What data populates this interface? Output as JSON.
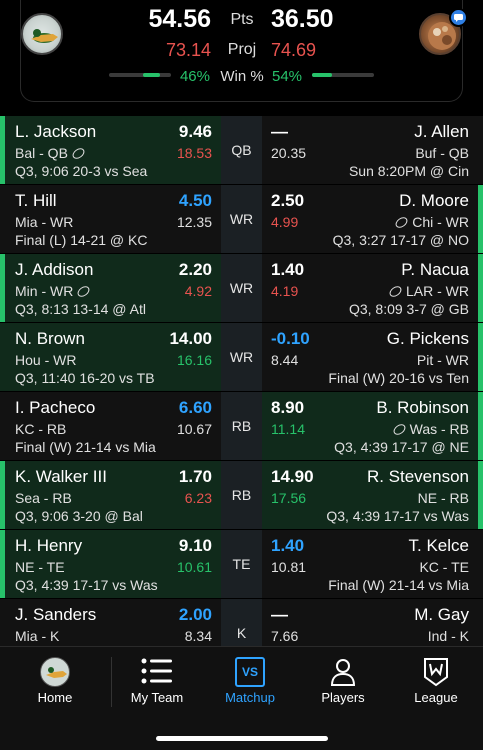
{
  "header": {
    "left_score": "54.56",
    "right_score": "36.50",
    "pts_label": "Pts",
    "left_proj": "73.14",
    "right_proj": "74.69",
    "proj_label": "Proj",
    "left_win_pct": "46%",
    "right_win_pct": "54%",
    "win_label": "Win %",
    "left_win_fraction": 0.46,
    "right_win_fraction": 0.54
  },
  "colors": {
    "win_bg": "#102a1b",
    "loss_bg": "#121212",
    "green": "#27c26a",
    "red": "#e8534f",
    "blue": "#2fa3ff"
  },
  "rows": [
    {
      "pos": "QB",
      "left": {
        "name": "L. Jackson",
        "meta": "Bal - QB",
        "score": "9.46",
        "score_color": "white",
        "proj": "18.53",
        "proj_color": "red",
        "game": "Q3, 9:06 20-3 vs Sea",
        "win": true,
        "football": true
      },
      "right": {
        "name": "J. Allen",
        "meta": "Buf - QB",
        "score": "—",
        "score_color": "white",
        "proj": "20.35",
        "proj_color": "grey",
        "game": "Sun 8:20PM @ Cin",
        "win": false,
        "football": false
      }
    },
    {
      "pos": "WR",
      "left": {
        "name": "T. Hill",
        "meta": "Mia - WR",
        "score": "4.50",
        "score_color": "blue",
        "proj": "12.35",
        "proj_color": "grey",
        "game": "Final (L) 14-21 @ KC",
        "win": false,
        "football": false
      },
      "right": {
        "name": "D. Moore",
        "meta": "Chi - WR",
        "score": "2.50",
        "score_color": "white",
        "proj": "4.99",
        "proj_color": "red",
        "game": "Q3, 3:27 17-17 @ NO",
        "win": false,
        "football": true
      }
    },
    {
      "pos": "WR",
      "left": {
        "name": "J. Addison",
        "meta": "Min - WR",
        "score": "2.20",
        "score_color": "white",
        "proj": "4.92",
        "proj_color": "red",
        "game": "Q3, 8:13 13-14 @ Atl",
        "win": true,
        "football": true
      },
      "right": {
        "name": "P. Nacua",
        "meta": "LAR - WR",
        "score": "1.40",
        "score_color": "white",
        "proj": "4.19",
        "proj_color": "red",
        "game": "Q3, 8:09 3-7 @ GB",
        "win": false,
        "football": true
      }
    },
    {
      "pos": "WR",
      "left": {
        "name": "N. Brown",
        "meta": "Hou - WR",
        "score": "14.00",
        "score_color": "white",
        "proj": "16.16",
        "proj_color": "green",
        "game": "Q3, 11:40 16-20 vs TB",
        "win": true,
        "football": false
      },
      "right": {
        "name": "G. Pickens",
        "meta": "Pit - WR",
        "score": "-0.10",
        "score_color": "blue",
        "proj": "8.44",
        "proj_color": "grey",
        "game": "Final (W) 20-16 vs Ten",
        "win": false,
        "football": false
      }
    },
    {
      "pos": "RB",
      "left": {
        "name": "I. Pacheco",
        "meta": "KC - RB",
        "score": "6.60",
        "score_color": "blue",
        "proj": "10.67",
        "proj_color": "grey",
        "game": "Final (W) 21-14 vs Mia",
        "win": false,
        "football": false
      },
      "right": {
        "name": "B. Robinson",
        "meta": "Was - RB",
        "score": "8.90",
        "score_color": "white",
        "proj": "11.14",
        "proj_color": "green",
        "game": "Q3, 4:39 17-17 @ NE",
        "win": true,
        "football": true
      }
    },
    {
      "pos": "RB",
      "left": {
        "name": "K. Walker III",
        "meta": "Sea - RB",
        "score": "1.70",
        "score_color": "white",
        "proj": "6.23",
        "proj_color": "red",
        "game": "Q3, 9:06 3-20 @ Bal",
        "win": true,
        "football": false
      },
      "right": {
        "name": "R. Stevenson",
        "meta": "NE - RB",
        "score": "14.90",
        "score_color": "white",
        "proj": "17.56",
        "proj_color": "green",
        "game": "Q3, 4:39 17-17 vs Was",
        "win": true,
        "football": false
      }
    },
    {
      "pos": "TE",
      "left": {
        "name": "H. Henry",
        "meta": "NE - TE",
        "score": "9.10",
        "score_color": "white",
        "proj": "10.61",
        "proj_color": "green",
        "game": "Q3, 4:39 17-17 vs Was",
        "win": true,
        "football": false
      },
      "right": {
        "name": "T. Kelce",
        "meta": "KC - TE",
        "score": "1.40",
        "score_color": "blue",
        "proj": "10.81",
        "proj_color": "grey",
        "game": "Final (W) 21-14 vs Mia",
        "win": false,
        "football": false
      }
    },
    {
      "pos": "K",
      "left": {
        "name": "J. Sanders",
        "meta": "Mia - K",
        "score": "2.00",
        "score_color": "blue",
        "proj": "8.34",
        "proj_color": "grey",
        "game": "",
        "win": false,
        "football": false
      },
      "right": {
        "name": "M. Gay",
        "meta": "Ind - K",
        "score": "—",
        "score_color": "white",
        "proj": "7.66",
        "proj_color": "grey",
        "game": "",
        "win": false,
        "football": false
      }
    }
  ],
  "row_edges": {
    "left": [
      true,
      false,
      true,
      false,
      false,
      true,
      true,
      false
    ],
    "right": [
      false,
      true,
      true,
      true,
      true,
      true,
      false,
      false
    ]
  },
  "nav": {
    "home": "Home",
    "my_team": "My Team",
    "matchup": "Matchup",
    "players": "Players",
    "league": "League",
    "matchup_icon_text": "VS",
    "active": "matchup"
  }
}
